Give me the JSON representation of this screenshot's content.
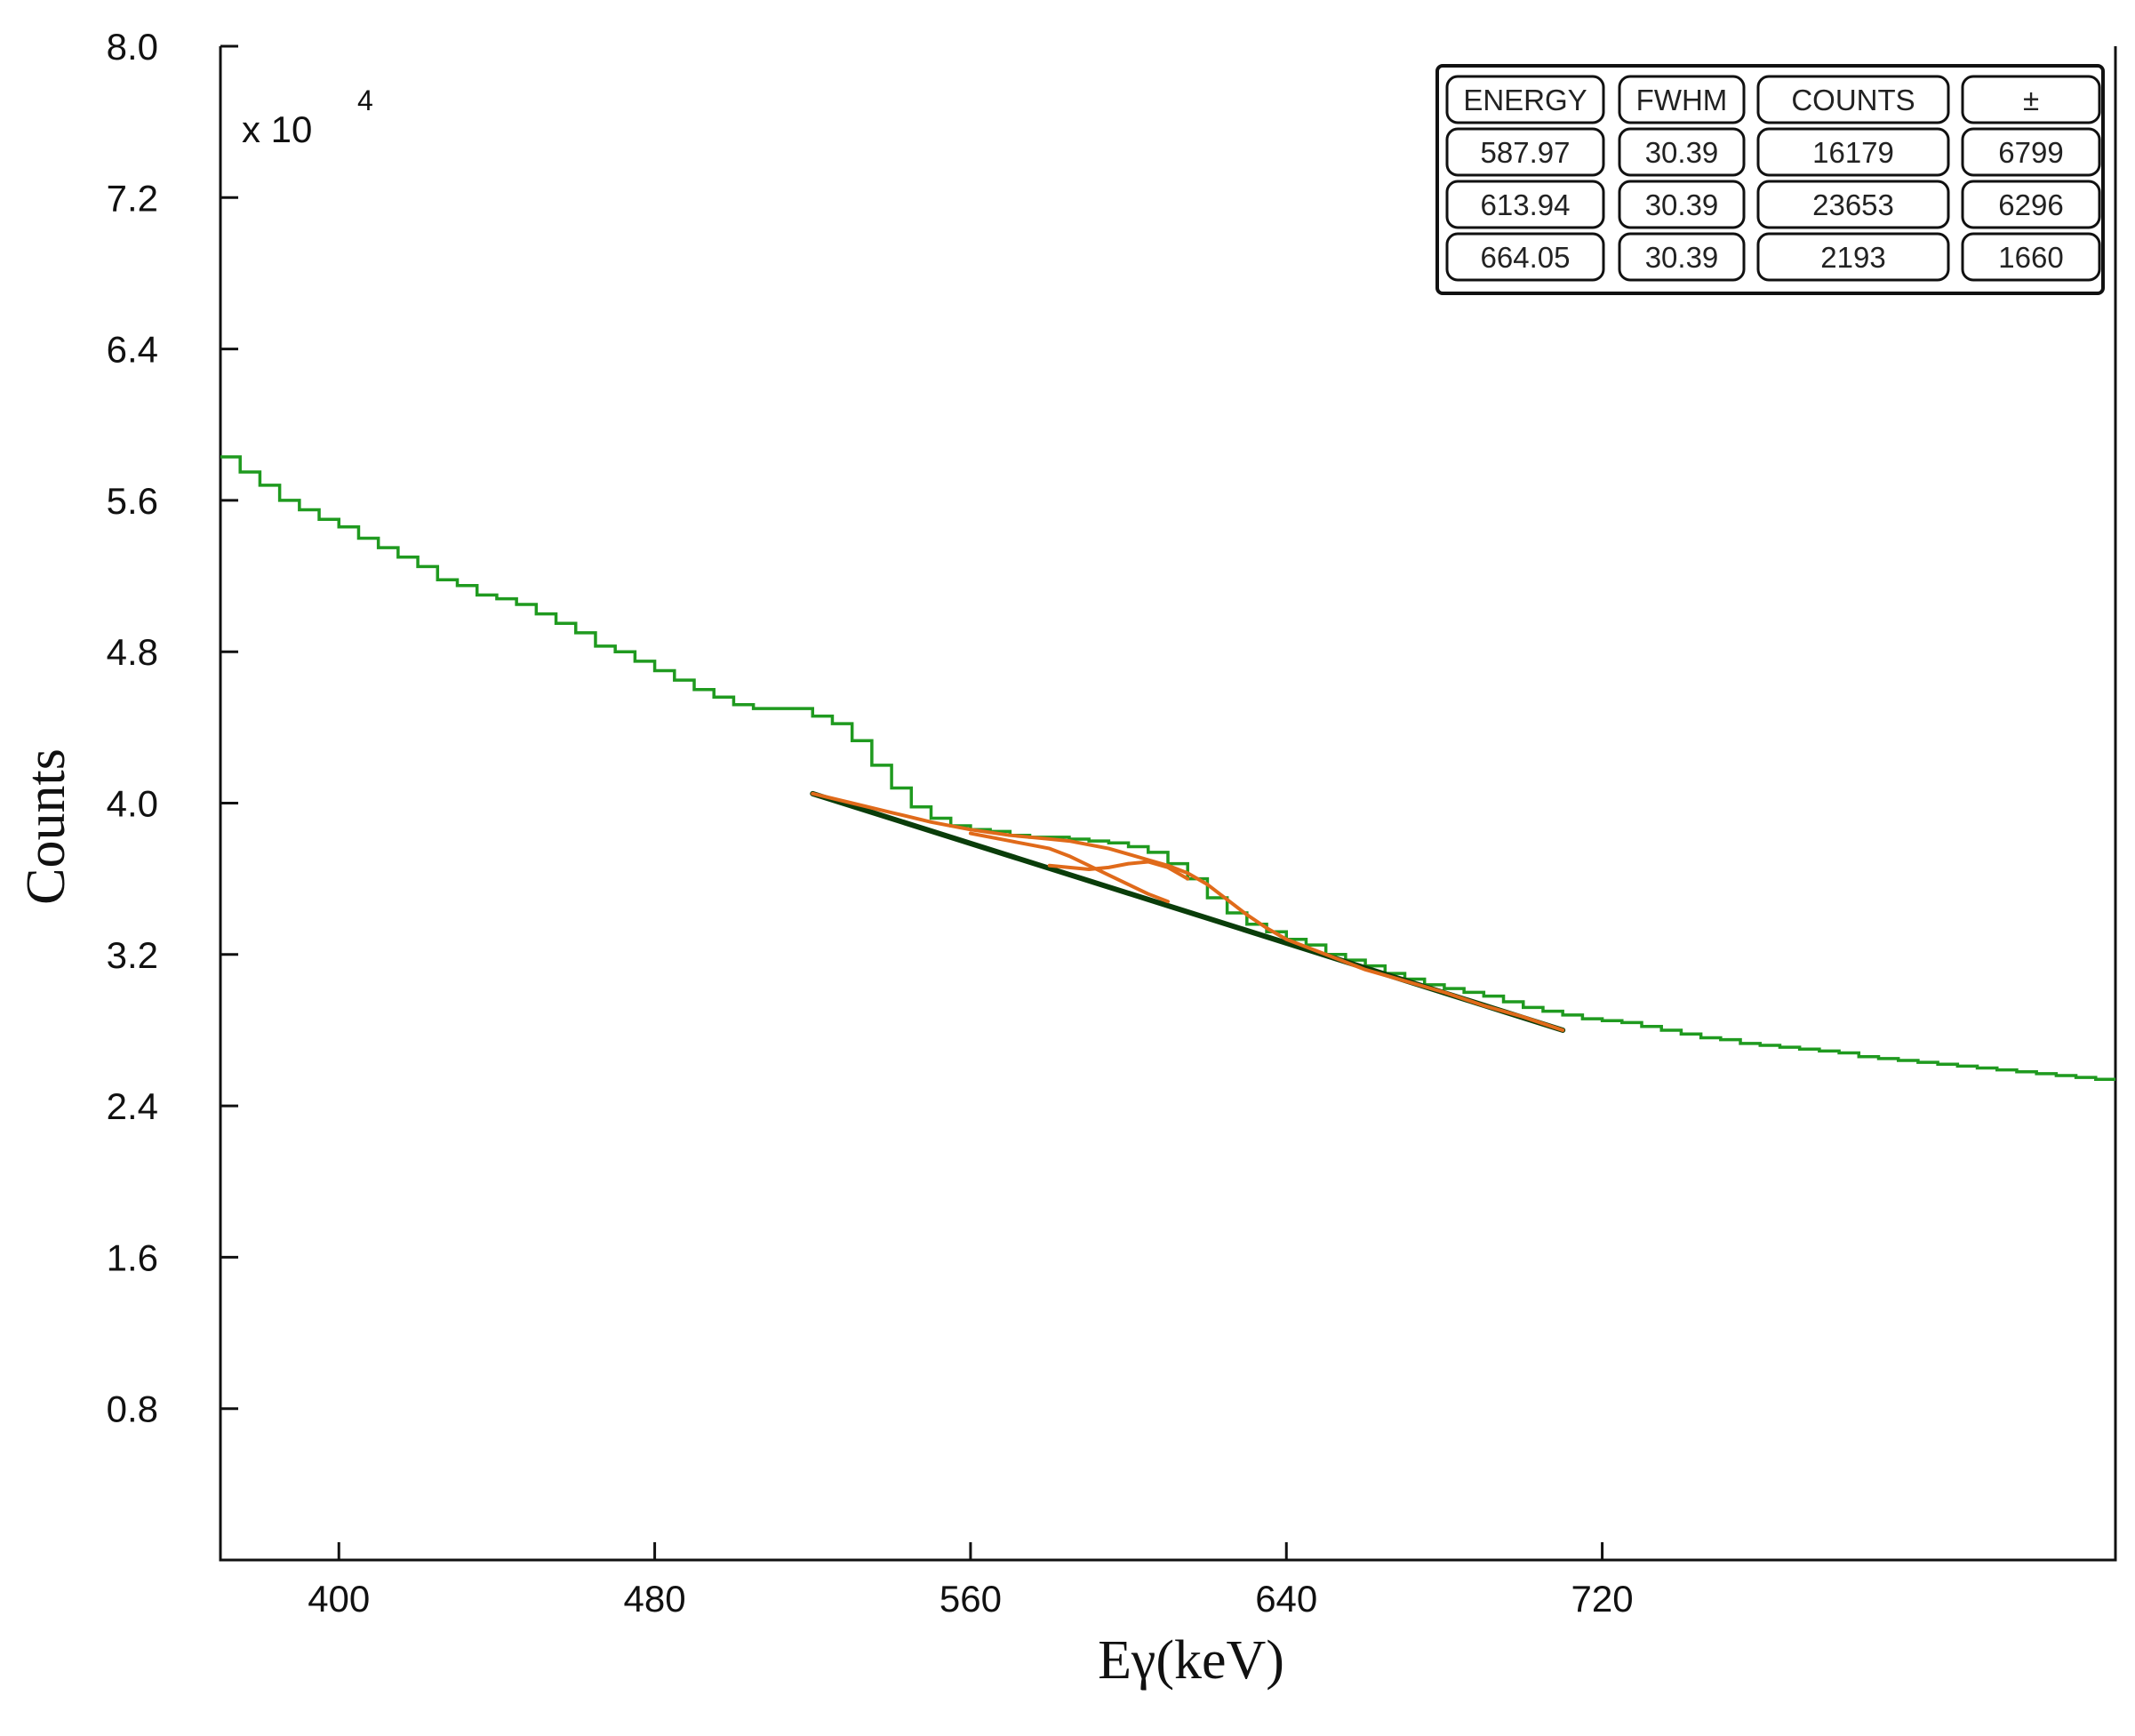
{
  "chart_data": {
    "type": "line",
    "xlabel": "Eγ(keV)",
    "ylabel": "Counts",
    "y_multiplier_label": "x 10",
    "y_multiplier_exponent": "4",
    "xlim": [
      370,
      850
    ],
    "ylim": [
      0,
      8.0
    ],
    "x_ticks": [
      "400",
      "480",
      "560",
      "640",
      "720"
    ],
    "x_tick_values": [
      400,
      480,
      560,
      640,
      720
    ],
    "y_ticks": [
      "0.8",
      "1.6",
      "2.4",
      "3.2",
      "4.0",
      "4.8",
      "5.6",
      "6.4",
      "7.2",
      "8.0"
    ],
    "y_tick_values": [
      0.8,
      1.6,
      2.4,
      3.2,
      4.0,
      4.8,
      5.6,
      6.4,
      7.2,
      8.0
    ],
    "grid": false,
    "series": [
      {
        "kind": "spectrum",
        "style": "step",
        "color": "#1f9a1f",
        "x": [
          370,
          375,
          380,
          385,
          390,
          395,
          400,
          405,
          410,
          415,
          420,
          425,
          430,
          435,
          440,
          445,
          450,
          455,
          460,
          465,
          470,
          475,
          480,
          485,
          490,
          495,
          500,
          505,
          510,
          515,
          520,
          525,
          530,
          535,
          540,
          545,
          550,
          555,
          560,
          565,
          570,
          575,
          580,
          585,
          590,
          595,
          600,
          605,
          610,
          615,
          620,
          625,
          630,
          635,
          640,
          645,
          650,
          655,
          660,
          665,
          670,
          675,
          680,
          685,
          690,
          695,
          700,
          705,
          710,
          715,
          720,
          725,
          730,
          735,
          740,
          745,
          750,
          755,
          760,
          765,
          770,
          775,
          780,
          785,
          790,
          795,
          800,
          805,
          810,
          815,
          820,
          825,
          830,
          835,
          840,
          845
        ],
        "y": [
          5.83,
          5.75,
          5.68,
          5.6,
          5.55,
          5.5,
          5.46,
          5.4,
          5.35,
          5.3,
          5.25,
          5.18,
          5.15,
          5.1,
          5.08,
          5.05,
          5.0,
          4.95,
          4.9,
          4.83,
          4.8,
          4.75,
          4.7,
          4.65,
          4.6,
          4.56,
          4.52,
          4.5,
          4.5,
          4.5,
          4.46,
          4.42,
          4.33,
          4.2,
          4.08,
          3.98,
          3.92,
          3.88,
          3.86,
          3.85,
          3.83,
          3.82,
          3.82,
          3.81,
          3.8,
          3.79,
          3.77,
          3.74,
          3.68,
          3.6,
          3.5,
          3.42,
          3.36,
          3.32,
          3.28,
          3.25,
          3.2,
          3.17,
          3.14,
          3.1,
          3.07,
          3.04,
          3.02,
          3.0,
          2.98,
          2.95,
          2.92,
          2.9,
          2.88,
          2.86,
          2.85,
          2.84,
          2.82,
          2.8,
          2.78,
          2.76,
          2.75,
          2.73,
          2.72,
          2.71,
          2.7,
          2.69,
          2.68,
          2.66,
          2.65,
          2.64,
          2.63,
          2.62,
          2.61,
          2.6,
          2.59,
          2.58,
          2.57,
          2.56,
          2.55,
          2.54
        ]
      },
      {
        "kind": "background",
        "color": "#0a3d0a",
        "x": [
          520,
          710
        ],
        "y": [
          4.05,
          2.8
        ]
      },
      {
        "kind": "fit-total",
        "color": "#e06a1a",
        "x": [
          520,
          530,
          540,
          550,
          560,
          570,
          575,
          580,
          585,
          590,
          595,
          600,
          605,
          610,
          615,
          620,
          625,
          630,
          635,
          640,
          650,
          660,
          670,
          680,
          690,
          700,
          710
        ],
        "y": [
          4.05,
          4.0,
          3.95,
          3.9,
          3.86,
          3.83,
          3.82,
          3.81,
          3.8,
          3.78,
          3.76,
          3.73,
          3.7,
          3.67,
          3.63,
          3.57,
          3.49,
          3.41,
          3.34,
          3.28,
          3.2,
          3.12,
          3.06,
          3.0,
          2.93,
          2.87,
          2.8
        ]
      },
      {
        "kind": "peak-1",
        "color": "#e06a1a",
        "x": [
          560,
          565,
          570,
          575,
          580,
          585,
          590,
          595,
          600,
          605,
          610
        ],
        "y": [
          3.84,
          3.82,
          3.8,
          3.78,
          3.76,
          3.72,
          3.67,
          3.62,
          3.57,
          3.52,
          3.48
        ]
      },
      {
        "kind": "peak-2",
        "color": "#e06a1a",
        "x": [
          580,
          585,
          590,
          595,
          600,
          605,
          610,
          615
        ],
        "y": [
          3.67,
          3.66,
          3.65,
          3.66,
          3.68,
          3.69,
          3.66,
          3.6
        ]
      }
    ],
    "table": {
      "headers": [
        "ENERGY",
        "FWHM",
        "COUNTS",
        "±"
      ],
      "rows": [
        [
          "587.97",
          "30.39",
          "16179",
          "6799"
        ],
        [
          "613.94",
          "30.39",
          "23653",
          "6296"
        ],
        [
          "664.05",
          "30.39",
          "2193",
          "1660"
        ]
      ]
    }
  }
}
